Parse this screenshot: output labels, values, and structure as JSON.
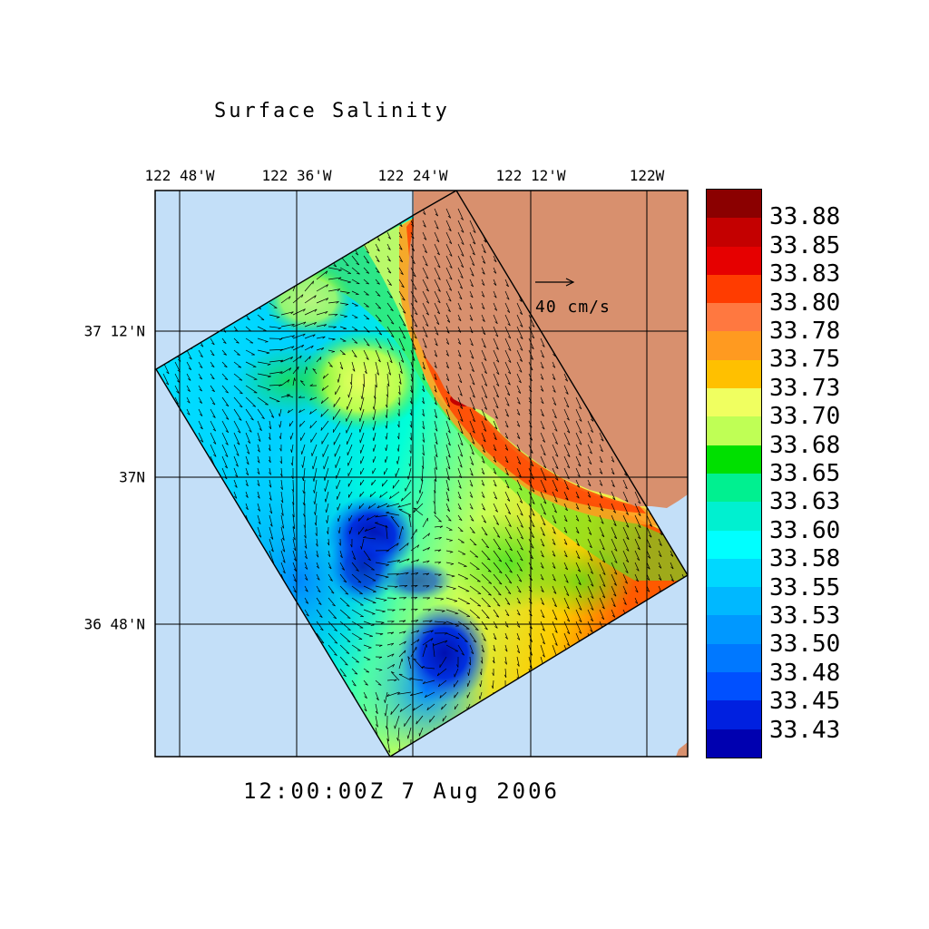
{
  "title": "Surface Salinity",
  "timestamp": "12:00:00Z   7 Aug 2006",
  "axes": {
    "longitude_labels": [
      "122 48'W",
      "122 36'W",
      "122 24'W",
      "122 12'W",
      "122W"
    ],
    "latitude_labels": [
      "37 12'N",
      "37N",
      "36 48'N"
    ]
  },
  "vector_scale": {
    "label": "40 cm/s"
  },
  "colorbar": {
    "labels": [
      "33.88",
      "33.85",
      "33.83",
      "33.80",
      "33.78",
      "33.75",
      "33.73",
      "33.70",
      "33.68",
      "33.65",
      "33.63",
      "33.60",
      "33.58",
      "33.55",
      "33.53",
      "33.50",
      "33.48",
      "33.45",
      "33.43"
    ],
    "colors": [
      "#8b0000",
      "#c40000",
      "#e60000",
      "#ff3c00",
      "#ff7840",
      "#ff9a20",
      "#ffc000",
      "#f0ff60",
      "#bfff55",
      "#00e000",
      "#00f090",
      "#00f0d0",
      "#00ffff",
      "#00d8ff",
      "#00b8ff",
      "#0098ff",
      "#0078ff",
      "#0050ff",
      "#0020e0",
      "#0000b0"
    ]
  },
  "map_colors": {
    "ocean": "#c3dff8",
    "land": "#d8906e",
    "grid": "#000000"
  }
}
